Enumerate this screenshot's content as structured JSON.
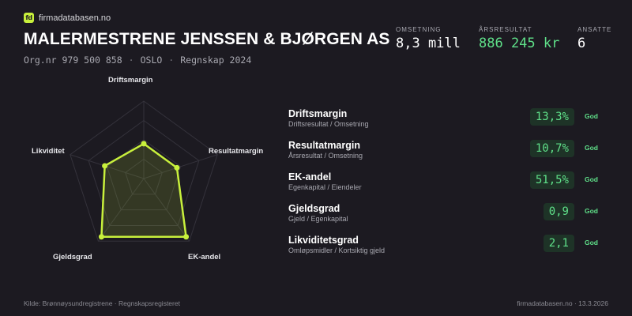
{
  "brand": {
    "logo_text": "fd",
    "name": "firmadatabasen.no",
    "accent": "#c8f03c"
  },
  "company": {
    "name": "MALERMESTRENE JENSSEN & BJØRGEN AS",
    "org_label": "Org.nr",
    "org_nr": "979 500 858",
    "city": "OSLO",
    "period": "Regnskap 2024"
  },
  "kpis": [
    {
      "label": "OMSETNING",
      "value": "8,3 mill"
    },
    {
      "label": "ÅRSRESULTAT",
      "value": "886 245 kr",
      "color": "#5fe089"
    },
    {
      "label": "ANSATTE",
      "value": "6"
    }
  ],
  "radar": {
    "axes": [
      "Driftsmargin",
      "Resultatmargin",
      "EK-andel",
      "Gjeldsgrad",
      "Likviditet"
    ],
    "values": [
      0.45,
      0.45,
      0.93,
      0.93,
      0.53
    ],
    "stroke": "#c8f03c"
  },
  "metrics": [
    {
      "name": "Driftsmargin",
      "description": "Driftsresultat / Omsetning",
      "value": "13,3%",
      "rating": "God"
    },
    {
      "name": "Resultatmargin",
      "description": "Årsresultat / Omsetning",
      "value": "10,7%",
      "rating": "God"
    },
    {
      "name": "EK-andel",
      "description": "Egenkapital / Eiendeler",
      "value": "51,5%",
      "rating": "God"
    },
    {
      "name": "Gjeldsgrad",
      "description": "Gjeld / Egenkapital",
      "value": "0,9",
      "rating": "God"
    },
    {
      "name": "Likviditetsgrad",
      "description": "Omløpsmidler / Kortsiktig gjeld",
      "value": "2,1",
      "rating": "God"
    }
  ],
  "footer": {
    "source": "Kilde: Brønnøysundregistrene · Regnskapsregisteret",
    "site_date": "firmadatabasen.no · 13.3.2026"
  }
}
